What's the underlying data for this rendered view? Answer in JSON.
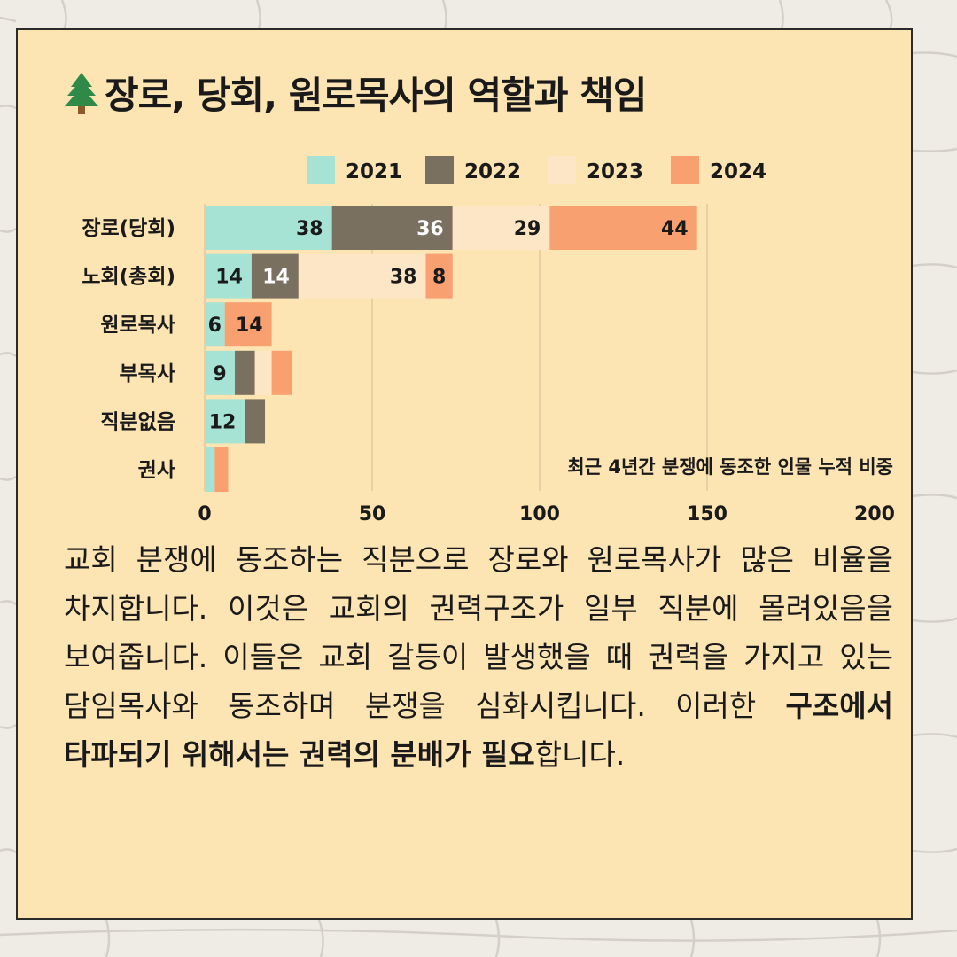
{
  "page": {
    "title": "장로, 당회, 원로목사의 역할과 책임",
    "title_icon": "evergreen-tree-icon",
    "paragraph_parts": [
      {
        "text": "교회 분쟁에 동조하는 직분으로 장로와 원로목사가 많은 비율을 차지합니다. 이것은 교회의 권력구조가 일부 직분에 몰려있음을 보여줍니다. 이들은 교회 갈등이 발생했을 때 권력을 가지고 있는 담임목사와 동조하며 분쟁을 심화시킵니다. 이러한 ",
        "bold": false
      },
      {
        "text": "구조에서 타파되기 위해서는 권력의 분배가 필요",
        "bold": true
      },
      {
        "text": "합니다.",
        "bold": false
      }
    ]
  },
  "colors": {
    "background": "#efece6",
    "card": "#fde4b3",
    "series": [
      "#a6e3d4",
      "#7a7060",
      "#fde6c6",
      "#f8a070"
    ]
  },
  "chart_data": {
    "type": "bar",
    "orientation": "horizontal",
    "stacked": true,
    "annotation": "최근 4년간 분쟁에 동조한 인물 누적 비중",
    "categories": [
      "장로(당회)",
      "노회(총회)",
      "원로목사",
      "부목사",
      "직분없음",
      "권사"
    ],
    "series": [
      {
        "name": "2021",
        "values": [
          38,
          14,
          6,
          9,
          12,
          3
        ]
      },
      {
        "name": "2022",
        "values": [
          36,
          14,
          0,
          6,
          6,
          0
        ]
      },
      {
        "name": "2023",
        "values": [
          29,
          38,
          0,
          5,
          0,
          0
        ]
      },
      {
        "name": "2024",
        "values": [
          44,
          8,
          14,
          6,
          0,
          4
        ]
      }
    ],
    "data_labels": [
      [
        "38",
        "14",
        "6",
        "9",
        "12",
        ""
      ],
      [
        "36",
        "14",
        "",
        "",
        "",
        ""
      ],
      [
        "29",
        "38",
        "",
        "",
        "",
        ""
      ],
      [
        "44",
        "8",
        "14",
        "",
        "",
        ""
      ]
    ],
    "xlim": [
      0,
      200
    ],
    "x_ticks": [
      "0",
      "50",
      "100",
      "150",
      "200"
    ],
    "grid": true,
    "legend_position": "top"
  }
}
